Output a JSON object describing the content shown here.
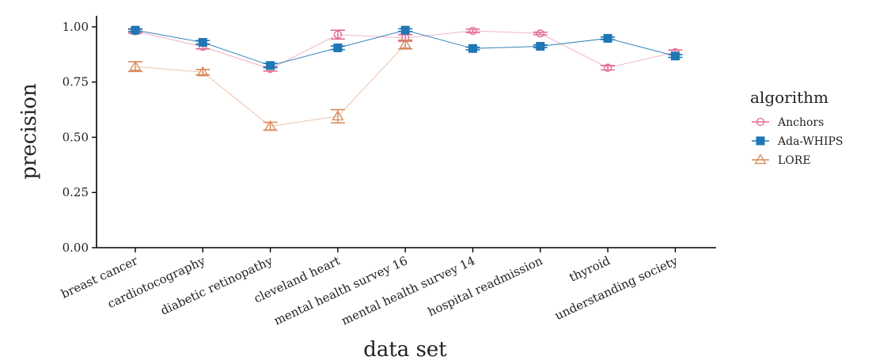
{
  "chart_data": {
    "type": "line",
    "xlabel": "data set",
    "ylabel": "precision",
    "ylim": [
      0,
      1.05
    ],
    "yticks": [
      "0.00",
      "0.25",
      "0.50",
      "0.75",
      "1.00"
    ],
    "categories": [
      "breast cancer",
      "cardiotocography",
      "diabetic retinopathy",
      "cleveland heart",
      "mental health survey 16",
      "mental health survey 14",
      "hospital readmission",
      "thyroid",
      "understanding society"
    ],
    "grid": false,
    "legend": {
      "title": "algorithm",
      "position": "right"
    },
    "series": [
      {
        "name": "Anchors",
        "color": "#e26a8e",
        "marker": "circle",
        "values": [
          0.98,
          0.91,
          0.81,
          0.965,
          0.95,
          0.982,
          0.97,
          0.815,
          0.885
        ],
        "errors": [
          0.008,
          0.01,
          0.01,
          0.02,
          0.015,
          0.008,
          0.006,
          0.01,
          0.01
        ]
      },
      {
        "name": "Ada-WHIPS",
        "color": "#1f77b4",
        "marker": "square",
        "values": [
          0.985,
          0.93,
          0.825,
          0.905,
          0.985,
          0.902,
          0.912,
          0.948,
          0.868
        ],
        "errors": [
          0.006,
          0.008,
          0.01,
          0.008,
          0.006,
          0.006,
          0.006,
          0.006,
          0.006
        ]
      },
      {
        "name": "LORE",
        "color": "#d9895a",
        "marker": "triangle",
        "values": [
          0.82,
          0.795,
          0.55,
          0.595,
          0.92,
          null,
          null,
          null,
          null
        ],
        "errors": [
          0.022,
          0.012,
          0.018,
          0.03,
          0.02,
          null,
          null,
          null,
          null
        ]
      }
    ]
  }
}
